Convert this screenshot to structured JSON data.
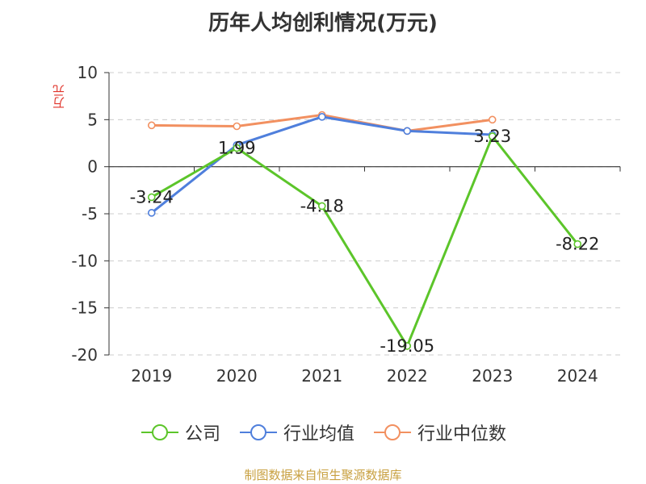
{
  "title": "历年人均创利情况(万元)",
  "source": "制图数据来自恒生聚源数据库",
  "chart_data": {
    "type": "line",
    "title": "历年人均创利情况(万元)",
    "ylabel": "万元",
    "categories": [
      "2019",
      "2020",
      "2021",
      "2022",
      "2023",
      "2024"
    ],
    "ylim": [
      -20,
      10
    ],
    "yticks": [
      10,
      5,
      0,
      -5,
      -10,
      -15,
      -20
    ],
    "grid": true,
    "legend_position": "bottom",
    "series": [
      {
        "name": "公司",
        "color": "#5cc52a",
        "values": [
          -3.24,
          1.99,
          -4.18,
          -19.05,
          3.23,
          -8.22
        ],
        "labels": [
          "-3.24",
          "1.99",
          "-4.18",
          "-19.05",
          "3.23",
          "-8.22"
        ]
      },
      {
        "name": "行业均值",
        "color": "#4f7fdc",
        "values": [
          -4.9,
          2.3,
          5.3,
          3.8,
          3.4,
          null
        ]
      },
      {
        "name": "行业中位数",
        "color": "#f29060",
        "values": [
          4.4,
          4.3,
          5.5,
          3.8,
          5.0,
          null
        ]
      }
    ]
  }
}
